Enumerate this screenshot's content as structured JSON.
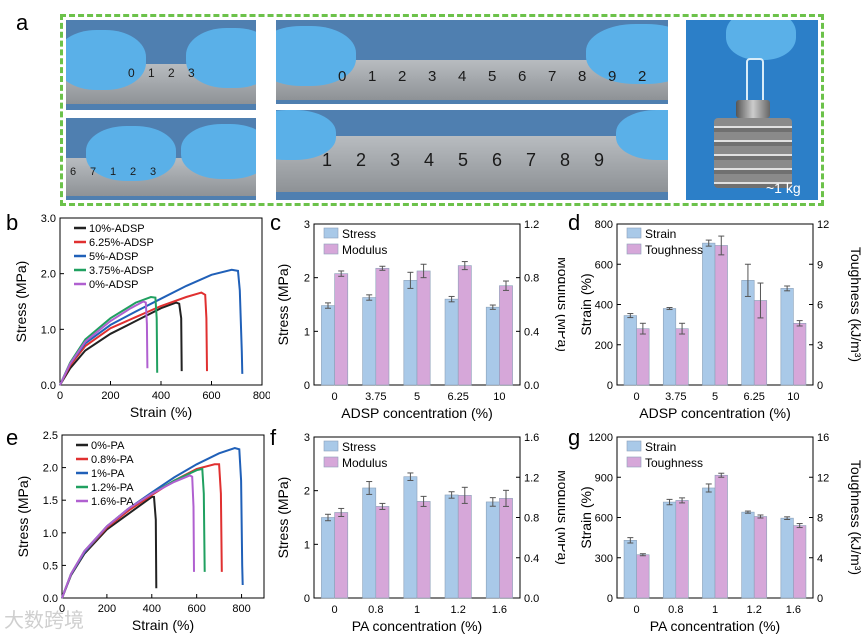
{
  "labels": {
    "a": "a",
    "b": "b",
    "c": "c",
    "d": "d",
    "e": "e",
    "f": "f",
    "g": "g"
  },
  "photos": {
    "ruler_short_top": [
      "0",
      "1",
      "2",
      "3"
    ],
    "ruler_short_bottom": [
      "6",
      "7",
      "1",
      "2",
      "3"
    ],
    "ruler_long_top": [
      "0",
      "1",
      "2",
      "3",
      "4",
      "5",
      "6",
      "7",
      "8",
      "9",
      "2"
    ],
    "ruler_long_bottom": [
      "1",
      "2",
      "3",
      "4",
      "5",
      "6",
      "7",
      "8",
      "9"
    ],
    "weight_label": "~1 kg"
  },
  "watermark": "大数跨境",
  "colors": {
    "blue_bar": "#a9c9e8",
    "pink_bar": "#d6a7d9",
    "bar_edge": "#7a9dc0"
  },
  "chart_data": [
    {
      "id": "b",
      "type": "line",
      "xlabel": "Strain (%)",
      "ylabel": "Stress (MPa)",
      "xlim": [
        0,
        800
      ],
      "ylim": [
        0,
        3.0
      ],
      "xticks": [
        "0",
        "200",
        "400",
        "600",
        "800"
      ],
      "yticks": [
        "0.0",
        "1.0",
        "2.0",
        "3.0"
      ],
      "series": [
        {
          "name": "10%-ADSP",
          "color": "#222222",
          "points": [
            [
              0,
              0
            ],
            [
              40,
              0.3
            ],
            [
              100,
              0.62
            ],
            [
              200,
              0.92
            ],
            [
              300,
              1.15
            ],
            [
              400,
              1.38
            ],
            [
              460,
              1.48
            ],
            [
              472,
              1.46
            ],
            [
              480,
              1.2
            ],
            [
              482,
              0.25
            ]
          ]
        },
        {
          "name": "6.25%-ADSP",
          "color": "#e03030",
          "points": [
            [
              0,
              0
            ],
            [
              40,
              0.35
            ],
            [
              100,
              0.7
            ],
            [
              200,
              1.02
            ],
            [
              300,
              1.22
            ],
            [
              400,
              1.42
            ],
            [
              500,
              1.58
            ],
            [
              560,
              1.66
            ],
            [
              575,
              1.62
            ],
            [
              580,
              1.2
            ],
            [
              582,
              0.25
            ]
          ]
        },
        {
          "name": "5%-ADSP",
          "color": "#2060b8",
          "points": [
            [
              0,
              0
            ],
            [
              40,
              0.38
            ],
            [
              100,
              0.75
            ],
            [
              200,
              1.08
            ],
            [
              300,
              1.32
            ],
            [
              400,
              1.55
            ],
            [
              500,
              1.78
            ],
            [
              600,
              1.98
            ],
            [
              680,
              2.07
            ],
            [
              705,
              2.05
            ],
            [
              712,
              1.7
            ],
            [
              720,
              0.6
            ],
            [
              722,
              0.2
            ]
          ]
        },
        {
          "name": "3.75%-ADSP",
          "color": "#20a060",
          "points": [
            [
              0,
              0
            ],
            [
              40,
              0.4
            ],
            [
              100,
              0.82
            ],
            [
              200,
              1.2
            ],
            [
              300,
              1.48
            ],
            [
              360,
              1.58
            ],
            [
              378,
              1.57
            ],
            [
              383,
              1.2
            ],
            [
              385,
              0.22
            ]
          ]
        },
        {
          "name": "0%-ADSP",
          "color": "#b060d0",
          "points": [
            [
              0,
              0
            ],
            [
              40,
              0.38
            ],
            [
              100,
              0.78
            ],
            [
              200,
              1.15
            ],
            [
              280,
              1.38
            ],
            [
              330,
              1.5
            ],
            [
              340,
              1.48
            ],
            [
              344,
              1.1
            ],
            [
              346,
              0.3
            ]
          ]
        }
      ]
    },
    {
      "id": "c",
      "type": "bar",
      "xlabel": "ADSP concentration (%)",
      "ylabel": "Stress (MPa)",
      "y2label": "Modulus (MPa)",
      "categories": [
        "0",
        "3.75",
        "5",
        "6.25",
        "10"
      ],
      "ylim": [
        0,
        3
      ],
      "y2lim": [
        0,
        1.2
      ],
      "yticks": [
        "0",
        "1",
        "2",
        "3"
      ],
      "y2ticks": [
        "0.0",
        "0.4",
        "0.8",
        "1.2"
      ],
      "series": [
        {
          "name": "Stress",
          "axis": "left",
          "values": [
            1.48,
            1.63,
            1.95,
            1.6,
            1.45
          ],
          "errors": [
            0.05,
            0.05,
            0.15,
            0.05,
            0.04
          ]
        },
        {
          "name": "Modulus",
          "axis": "right",
          "values": [
            0.83,
            0.87,
            0.85,
            0.89,
            0.74
          ],
          "errors": [
            0.02,
            0.015,
            0.05,
            0.03,
            0.035
          ]
        }
      ]
    },
    {
      "id": "d",
      "type": "bar",
      "xlabel": "ADSP concentration (%)",
      "ylabel": "Strain (%)",
      "y2label": "Toughness (kJ/m³)",
      "categories": [
        "0",
        "3.75",
        "5",
        "6.25",
        "10"
      ],
      "ylim": [
        0,
        800
      ],
      "y2lim": [
        0,
        12
      ],
      "yticks": [
        "0",
        "200",
        "400",
        "600",
        "800"
      ],
      "y2ticks": [
        "0",
        "3",
        "6",
        "9",
        "12"
      ],
      "series": [
        {
          "name": "Strain",
          "axis": "left",
          "values": [
            345,
            380,
            705,
            520,
            480
          ],
          "errors": [
            10,
            5,
            15,
            80,
            12
          ]
        },
        {
          "name": "Toughness",
          "axis": "right",
          "values": [
            4.2,
            4.2,
            10.4,
            6.3,
            4.6
          ],
          "errors": [
            0.4,
            0.4,
            0.7,
            1.3,
            0.2
          ]
        }
      ]
    },
    {
      "id": "e",
      "type": "line",
      "xlabel": "Strain (%)",
      "ylabel": "Stress (MPa)",
      "xlim": [
        0,
        900
      ],
      "ylim": [
        0,
        2.5
      ],
      "xticks": [
        "0",
        "200",
        "400",
        "600",
        "800"
      ],
      "yticks": [
        "0.0",
        "0.5",
        "1.0",
        "1.5",
        "2.0",
        "2.5"
      ],
      "series": [
        {
          "name": "0%-PA",
          "color": "#222222",
          "points": [
            [
              0,
              0
            ],
            [
              40,
              0.35
            ],
            [
              100,
              0.68
            ],
            [
              200,
              1.05
            ],
            [
              300,
              1.3
            ],
            [
              400,
              1.55
            ],
            [
              410,
              1.55
            ],
            [
              418,
              1.2
            ],
            [
              420,
              0.15
            ]
          ]
        },
        {
          "name": "0.8%-PA",
          "color": "#e03030",
          "points": [
            [
              0,
              0
            ],
            [
              40,
              0.36
            ],
            [
              100,
              0.7
            ],
            [
              200,
              1.08
            ],
            [
              300,
              1.35
            ],
            [
              400,
              1.58
            ],
            [
              500,
              1.8
            ],
            [
              600,
              1.98
            ],
            [
              680,
              2.05
            ],
            [
              700,
              2.05
            ],
            [
              708,
              1.6
            ],
            [
              712,
              0.4
            ]
          ]
        },
        {
          "name": "1%-PA",
          "color": "#2060b8",
          "points": [
            [
              0,
              0
            ],
            [
              40,
              0.36
            ],
            [
              100,
              0.7
            ],
            [
              200,
              1.1
            ],
            [
              300,
              1.38
            ],
            [
              400,
              1.62
            ],
            [
              500,
              1.85
            ],
            [
              600,
              2.05
            ],
            [
              700,
              2.22
            ],
            [
              770,
              2.3
            ],
            [
              790,
              2.28
            ],
            [
              798,
              1.8
            ],
            [
              803,
              0.5
            ],
            [
              805,
              0.2
            ]
          ]
        },
        {
          "name": "1.2%-PA",
          "color": "#20a060",
          "points": [
            [
              0,
              0
            ],
            [
              40,
              0.37
            ],
            [
              100,
              0.72
            ],
            [
              200,
              1.1
            ],
            [
              300,
              1.38
            ],
            [
              400,
              1.6
            ],
            [
              500,
              1.8
            ],
            [
              600,
              1.96
            ],
            [
              625,
              1.98
            ],
            [
              632,
              1.6
            ],
            [
              636,
              0.4
            ]
          ]
        },
        {
          "name": "1.6%-PA",
          "color": "#b060d0",
          "points": [
            [
              0,
              0
            ],
            [
              40,
              0.37
            ],
            [
              100,
              0.72
            ],
            [
              200,
              1.1
            ],
            [
              300,
              1.38
            ],
            [
              400,
              1.6
            ],
            [
              500,
              1.78
            ],
            [
              570,
              1.88
            ],
            [
              580,
              1.86
            ],
            [
              586,
              1.4
            ],
            [
              588,
              0.4
            ]
          ]
        }
      ]
    },
    {
      "id": "f",
      "type": "bar",
      "xlabel": "PA concentration (%)",
      "ylabel": "Stress (MPa)",
      "y2label": "Modulus (MPa)",
      "categories": [
        "0",
        "0.8",
        "1",
        "1.2",
        "1.6"
      ],
      "ylim": [
        0,
        3
      ],
      "y2lim": [
        0,
        1.6
      ],
      "yticks": [
        "0",
        "1",
        "2",
        "3"
      ],
      "y2ticks": [
        "0.0",
        "0.4",
        "0.8",
        "1.2",
        "1.6"
      ],
      "series": [
        {
          "name": "Stress",
          "axis": "left",
          "values": [
            1.5,
            2.05,
            2.26,
            1.92,
            1.79
          ],
          "errors": [
            0.06,
            0.12,
            0.07,
            0.06,
            0.08
          ]
        },
        {
          "name": "Modulus",
          "axis": "right",
          "values": [
            0.85,
            0.91,
            0.96,
            1.02,
            0.99
          ],
          "errors": [
            0.04,
            0.03,
            0.05,
            0.08,
            0.08
          ]
        }
      ]
    },
    {
      "id": "g",
      "type": "bar",
      "xlabel": "PA concentration (%)",
      "ylabel": "Strain (%)",
      "y2label": "Toughness (kJ/m³)",
      "categories": [
        "0",
        "0.8",
        "1",
        "1.2",
        "1.6"
      ],
      "ylim": [
        0,
        1200
      ],
      "y2lim": [
        0,
        16
      ],
      "yticks": [
        "0",
        "300",
        "600",
        "900",
        "1200"
      ],
      "y2ticks": [
        "0",
        "4",
        "8",
        "12",
        "16"
      ],
      "series": [
        {
          "name": "Strain",
          "axis": "left",
          "values": [
            430,
            715,
            820,
            640,
            595
          ],
          "errors": [
            20,
            20,
            30,
            8,
            10
          ]
        },
        {
          "name": "Toughness",
          "axis": "right",
          "values": [
            4.3,
            9.7,
            12.2,
            8.1,
            7.2
          ],
          "errors": [
            0.1,
            0.25,
            0.2,
            0.15,
            0.2
          ]
        }
      ]
    }
  ]
}
